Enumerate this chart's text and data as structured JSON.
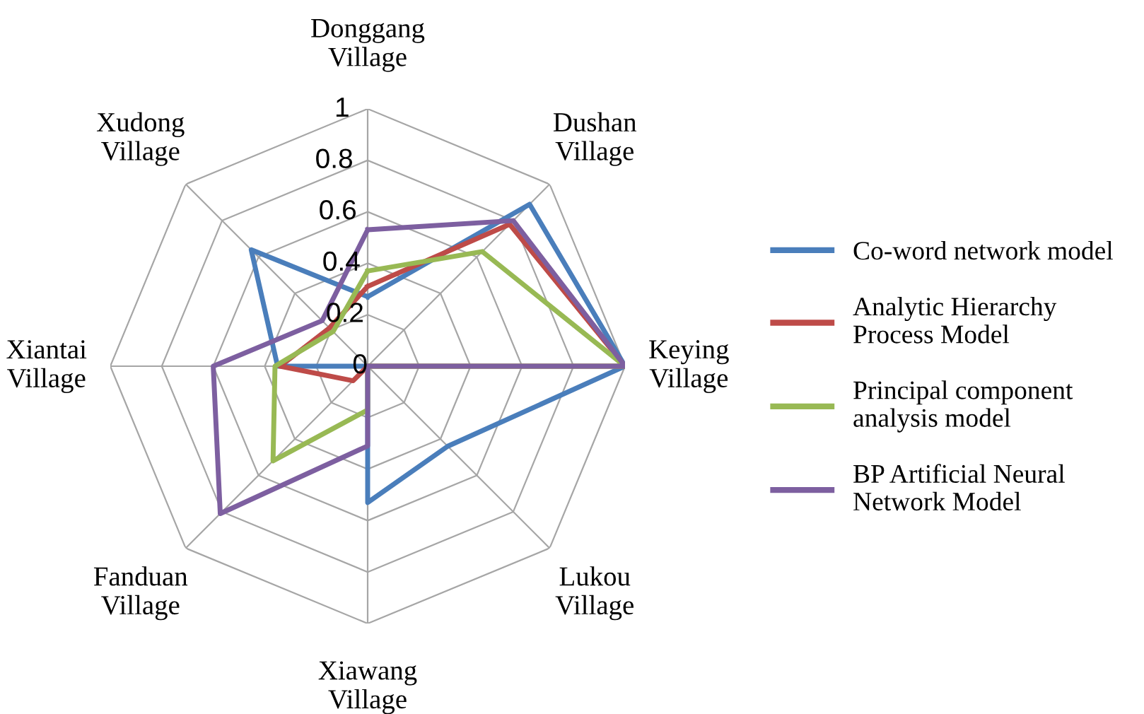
{
  "chart_data": {
    "type": "radar",
    "categories": [
      "Donggang Village",
      "Dushan Village",
      "Keying Village",
      "Lukou Village",
      "Xiawang Village",
      "Fanduan Village",
      "Xiantai Village",
      "Xudong Village"
    ],
    "ylim": [
      0,
      1
    ],
    "yticks": [
      0,
      0.2,
      0.4,
      0.6,
      0.8,
      1
    ],
    "grid": true,
    "legend": "right",
    "marker": "none",
    "line_style": "solid",
    "series": [
      {
        "name": "Co-word network model",
        "color": "#4a7ebb",
        "values": [
          0.27,
          0.89,
          1,
          0.44,
          0.53,
          0,
          0.35,
          0.64
        ]
      },
      {
        "name": "Analytic Hierarchy Process Model",
        "color": "#be4b48",
        "values": [
          0.31,
          0.78,
          1,
          0,
          0,
          0.08,
          0.34,
          0.21
        ]
      },
      {
        "name": "Principal component analysis model",
        "color": "#98b954",
        "values": [
          0.37,
          0.63,
          1,
          0,
          0.17,
          0.52,
          0.36,
          0.19
        ]
      },
      {
        "name": "BP Artificial Neural Network Model",
        "color": "#7d5fa0",
        "values": [
          0.53,
          0.8,
          1,
          0,
          0.31,
          0.81,
          0.6,
          0.25
        ]
      }
    ]
  }
}
